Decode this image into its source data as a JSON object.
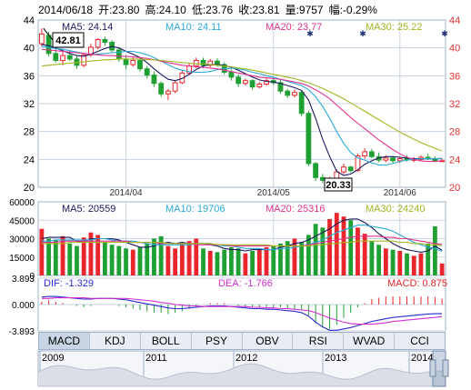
{
  "header": {
    "date": "2014/06/18",
    "open": "开:23.80",
    "high": "高:24.10",
    "low": "低:23.76",
    "close": "收:23.81",
    "volume": "量:9757",
    "change": "幅:-0.29%"
  },
  "colors": {
    "up": "#e8262b",
    "down": "#20a033",
    "ma5": "#1a1a5e",
    "ma10": "#2aa9d9",
    "ma20": "#e0338f",
    "ma30": "#a3b61f",
    "dif": "#2b2bd0",
    "dea": "#d22fd2",
    "grid": "#c8d3e2",
    "axis_left": "#000000",
    "axis_right": "#e03030"
  },
  "price_legend": [
    "MA5: 24.14",
    "MA10: 24.11",
    "MA20: 23.77",
    "MA30: 25.22"
  ],
  "volume_legend": [
    "MA5: 20559",
    "MA10: 19706",
    "MA20: 25316",
    "MA30: 24240"
  ],
  "macd_legend": [
    "DIF: -1.329",
    "DEA: -1.766",
    "MACD: 0.875"
  ],
  "price_callouts": {
    "high": "42.81",
    "low": "20.33"
  },
  "tabs": [
    {
      "label": "MACD",
      "active": true
    },
    {
      "label": "KDJ",
      "active": false
    },
    {
      "label": "BOLL",
      "active": false
    },
    {
      "label": "PSY",
      "active": false
    },
    {
      "label": "OBV",
      "active": false
    },
    {
      "label": "RSI",
      "active": false
    },
    {
      "label": "WVAD",
      "active": false
    },
    {
      "label": "CCI",
      "active": false
    }
  ],
  "timeline_years": [
    "2009",
    "2011",
    "2012",
    "2013",
    "2014"
  ],
  "chart_data": [
    {
      "type": "candlestick",
      "name": "price",
      "ylim": [
        20,
        44
      ],
      "y_ticks": [
        20,
        24,
        28,
        32,
        36,
        40,
        44
      ],
      "x_ticks": [
        "2014/04",
        "2014/05",
        "2014/06"
      ],
      "ohlc": [
        [
          40.6,
          42.8,
          40.2,
          42.0
        ],
        [
          41.8,
          42.3,
          38.8,
          39.2
        ],
        [
          39.2,
          40.0,
          37.9,
          38.2
        ],
        [
          38.2,
          39.5,
          37.5,
          38.9
        ],
        [
          38.9,
          39.6,
          38.1,
          38.4
        ],
        [
          38.4,
          38.9,
          37.0,
          37.5
        ],
        [
          37.5,
          39.3,
          37.2,
          39.0
        ],
        [
          39.0,
          40.6,
          38.7,
          40.1
        ],
        [
          40.1,
          41.4,
          39.8,
          41.2
        ],
        [
          41.2,
          41.6,
          40.3,
          40.8
        ],
        [
          40.8,
          41.1,
          39.3,
          39.7
        ],
        [
          39.7,
          40.1,
          38.0,
          38.4
        ],
        [
          38.4,
          38.9,
          37.0,
          37.6
        ],
        [
          37.6,
          38.7,
          37.3,
          38.2
        ],
        [
          38.2,
          38.5,
          36.6,
          37.0
        ],
        [
          37.0,
          37.4,
          35.6,
          36.1
        ],
        [
          36.1,
          36.6,
          34.4,
          34.9
        ],
        [
          34.9,
          35.2,
          33.0,
          33.4
        ],
        [
          33.4,
          34.1,
          32.5,
          33.8
        ],
        [
          33.8,
          35.3,
          33.5,
          35.0
        ],
        [
          35.0,
          36.8,
          34.8,
          36.4
        ],
        [
          36.4,
          37.8,
          36.1,
          37.4
        ],
        [
          37.4,
          38.6,
          37.1,
          38.2
        ],
        [
          38.2,
          38.6,
          37.1,
          37.5
        ],
        [
          37.5,
          38.4,
          37.2,
          38.1
        ],
        [
          38.1,
          38.5,
          37.3,
          37.6
        ],
        [
          37.6,
          37.9,
          36.2,
          36.5
        ],
        [
          36.5,
          36.9,
          35.3,
          35.8
        ],
        [
          35.8,
          36.2,
          34.4,
          34.9
        ],
        [
          34.9,
          35.6,
          34.6,
          35.3
        ],
        [
          35.3,
          35.5,
          34.0,
          34.4
        ],
        [
          34.4,
          35.1,
          34.2,
          34.8
        ],
        [
          34.8,
          35.6,
          34.6,
          35.3
        ],
        [
          35.3,
          35.8,
          34.7,
          35.0
        ],
        [
          35.0,
          35.4,
          33.4,
          33.8
        ],
        [
          33.8,
          34.1,
          32.8,
          33.2
        ],
        [
          33.2,
          34.0,
          32.9,
          33.6
        ],
        [
          33.6,
          33.9,
          30.2,
          30.6
        ],
        [
          30.6,
          31.0,
          23.0,
          23.4
        ],
        [
          23.4,
          23.6,
          20.9,
          21.4
        ],
        [
          21.4,
          21.9,
          20.6,
          21.0
        ],
        [
          21.0,
          21.5,
          20.33,
          21.1
        ],
        [
          21.1,
          22.6,
          21.0,
          22.2
        ],
        [
          22.2,
          23.4,
          21.9,
          22.9
        ],
        [
          22.9,
          23.1,
          22.1,
          22.4
        ],
        [
          22.4,
          24.8,
          22.2,
          24.5
        ],
        [
          24.5,
          25.6,
          24.1,
          25.1
        ],
        [
          25.1,
          25.5,
          24.2,
          24.4
        ],
        [
          24.4,
          25.0,
          23.6,
          23.9
        ],
        [
          23.9,
          24.6,
          23.6,
          24.2
        ],
        [
          24.2,
          24.5,
          23.5,
          23.8
        ],
        [
          23.8,
          24.4,
          23.5,
          24.1
        ],
        [
          24.1,
          24.6,
          23.7,
          23.9
        ],
        [
          23.9,
          24.3,
          23.6,
          24.0
        ],
        [
          24.0,
          24.6,
          23.7,
          24.3
        ],
        [
          24.3,
          24.8,
          23.9,
          24.1
        ],
        [
          24.1,
          24.4,
          23.6,
          23.8
        ],
        [
          23.8,
          24.1,
          23.76,
          23.81
        ]
      ],
      "ma5": [
        40.5,
        40.3,
        40.0,
        39.6,
        39.2,
        38.9,
        38.8,
        39.1,
        39.5,
        39.9,
        40.2,
        40.0,
        39.5,
        39.1,
        38.6,
        37.9,
        37.0,
        36.2,
        35.5,
        35.3,
        35.6,
        36.2,
        36.9,
        37.4,
        37.6,
        37.6,
        37.5,
        37.2,
        36.8,
        36.3,
        35.8,
        35.4,
        35.2,
        35.1,
        34.9,
        34.6,
        34.3,
        33.9,
        32.5,
        29.9,
        26.9,
        24.4,
        22.3,
        21.7,
        21.9,
        22.5,
        23.3,
        23.8,
        24.2,
        24.4,
        24.4,
        24.3,
        24.2,
        24.1,
        24.1,
        24.1,
        24.1,
        24.14
      ],
      "ma10": [
        40.2,
        40.1,
        39.9,
        39.8,
        39.6,
        39.4,
        39.2,
        39.1,
        39.1,
        39.2,
        39.3,
        39.4,
        39.5,
        39.5,
        39.3,
        39.0,
        38.6,
        38.1,
        37.6,
        37.1,
        36.8,
        36.6,
        36.5,
        36.5,
        36.6,
        36.9,
        37.0,
        37.1,
        37.0,
        36.8,
        36.5,
        36.3,
        36.0,
        35.8,
        35.5,
        35.2,
        34.9,
        34.6,
        34.0,
        33.0,
        31.6,
        29.9,
        28.0,
        26.3,
        25.0,
        24.2,
        23.9,
        23.5,
        23.2,
        23.2,
        23.4,
        23.7,
        23.9,
        24.0,
        24.1,
        24.1,
        24.1,
        24.11
      ],
      "ma20": [
        39.8,
        39.7,
        39.6,
        39.5,
        39.4,
        39.3,
        39.2,
        39.1,
        39.0,
        38.9,
        38.9,
        38.8,
        38.8,
        38.7,
        38.6,
        38.5,
        38.3,
        38.1,
        37.9,
        37.7,
        37.5,
        37.4,
        37.3,
        37.2,
        37.1,
        37.0,
        36.8,
        36.6,
        36.4,
        36.2,
        36.0,
        35.8,
        35.7,
        35.6,
        35.5,
        35.3,
        35.1,
        34.9,
        34.5,
        34.0,
        33.4,
        32.7,
        31.8,
        30.9,
        30.0,
        29.2,
        28.4,
        27.6,
        26.8,
        26.1,
        25.4,
        24.8,
        24.3,
        24.0,
        23.8,
        23.7,
        23.7,
        23.77
      ],
      "ma30": [
        37.4,
        37.5,
        37.6,
        37.7,
        37.8,
        37.9,
        38.0,
        38.1,
        38.2,
        38.3,
        38.3,
        38.4,
        38.4,
        38.4,
        38.4,
        38.3,
        38.3,
        38.2,
        38.1,
        38.0,
        37.9,
        37.8,
        37.7,
        37.7,
        37.6,
        37.5,
        37.4,
        37.3,
        37.1,
        37.0,
        36.8,
        36.6,
        36.4,
        36.2,
        36.0,
        35.8,
        35.6,
        35.3,
        35.0,
        34.6,
        34.2,
        33.7,
        33.2,
        32.7,
        32.1,
        31.5,
        30.9,
        30.3,
        29.7,
        29.1,
        28.5,
        27.9,
        27.4,
        26.9,
        26.4,
        26.0,
        25.6,
        25.22
      ]
    },
    {
      "type": "bar",
      "name": "volume",
      "ylim": [
        0,
        60000
      ],
      "y_ticks": [
        0,
        15000,
        30000,
        45000,
        60000
      ],
      "values": [
        38000,
        30000,
        29000,
        32000,
        26000,
        24000,
        31000,
        35000,
        33000,
        27000,
        25000,
        24000,
        22000,
        21000,
        23000,
        26000,
        30000,
        32000,
        24000,
        22000,
        26000,
        28000,
        30000,
        22000,
        20000,
        19000,
        21000,
        23000,
        22000,
        18000,
        20000,
        21000,
        23000,
        24000,
        26000,
        28000,
        30000,
        27000,
        33000,
        42000,
        39000,
        46000,
        51000,
        48000,
        45000,
        39000,
        34000,
        28000,
        25000,
        22000,
        21000,
        20000,
        18000,
        16000,
        18000,
        26000,
        40000,
        9757
      ],
      "ma5": [
        30000,
        31000,
        31000,
        31000,
        31000,
        28000,
        27000,
        30000,
        30000,
        30000,
        30000,
        29000,
        27000,
        25000,
        23000,
        23000,
        24000,
        26000,
        27000,
        26000,
        27000,
        26000,
        26000,
        26000,
        25000,
        24000,
        22000,
        21000,
        21000,
        20000,
        21000,
        21000,
        21000,
        21000,
        23000,
        24000,
        26000,
        27000,
        29000,
        32000,
        35000,
        38000,
        42000,
        45000,
        46000,
        46000,
        43000,
        39000,
        34000,
        30000,
        26000,
        23000,
        21000,
        20000,
        19000,
        20000,
        24000,
        20559
      ],
      "ma10": [
        28000,
        28000,
        29000,
        29000,
        29000,
        29000,
        29000,
        29000,
        30000,
        30000,
        29000,
        28000,
        28000,
        28000,
        27000,
        26000,
        25000,
        25000,
        25000,
        25000,
        25000,
        25000,
        26000,
        26000,
        26000,
        25000,
        24000,
        24000,
        23000,
        22000,
        22000,
        22000,
        21000,
        21000,
        22000,
        22000,
        23000,
        24000,
        25000,
        27000,
        29000,
        32000,
        35000,
        37000,
        39000,
        41000,
        41000,
        40000,
        39000,
        38000,
        36000,
        33000,
        30000,
        27000,
        25000,
        23000,
        22000,
        19706
      ],
      "ma20": [
        27000,
        27000,
        27000,
        28000,
        28000,
        28000,
        28000,
        28000,
        28000,
        28000,
        28000,
        28000,
        28000,
        27000,
        27000,
        27000,
        27000,
        26000,
        26000,
        26000,
        26000,
        26000,
        25000,
        25000,
        25000,
        25000,
        25000,
        24000,
        24000,
        24000,
        24000,
        24000,
        24000,
        24000,
        24000,
        24000,
        24000,
        24000,
        25000,
        26000,
        27000,
        28000,
        29000,
        30000,
        31000,
        32000,
        32000,
        32000,
        32000,
        31000,
        31000,
        30000,
        30000,
        29000,
        28000,
        27000,
        26000,
        25316
      ],
      "ma30": [
        26000,
        26000,
        26000,
        26000,
        27000,
        27000,
        27000,
        27000,
        27000,
        27000,
        27000,
        27000,
        27000,
        27000,
        27000,
        27000,
        27000,
        27000,
        26000,
        26000,
        26000,
        26000,
        26000,
        26000,
        26000,
        25000,
        25000,
        25000,
        25000,
        25000,
        25000,
        25000,
        25000,
        24000,
        24000,
        24000,
        24000,
        24000,
        24000,
        25000,
        25000,
        26000,
        26000,
        27000,
        27000,
        28000,
        28000,
        28000,
        28000,
        28000,
        28000,
        27000,
        27000,
        26000,
        26000,
        25000,
        25000,
        24240
      ]
    },
    {
      "type": "line",
      "name": "MACD",
      "ylim": [
        -3.893,
        3.893
      ],
      "y_ticks": [
        -3.893,
        0.0,
        3.893
      ],
      "dif": [
        1.1,
        1.2,
        1.2,
        1.1,
        1.0,
        0.9,
        0.8,
        0.8,
        0.9,
        0.9,
        0.9,
        0.8,
        0.7,
        0.5,
        0.3,
        0.1,
        -0.1,
        -0.3,
        -0.5,
        -0.6,
        -0.6,
        -0.5,
        -0.4,
        -0.3,
        -0.2,
        -0.2,
        -0.2,
        -0.3,
        -0.4,
        -0.5,
        -0.6,
        -0.6,
        -0.7,
        -0.7,
        -0.8,
        -0.9,
        -1.0,
        -1.2,
        -1.7,
        -2.6,
        -3.3,
        -3.8,
        -3.8,
        -3.6,
        -3.4,
        -3.1,
        -2.8,
        -2.5,
        -2.3,
        -2.1,
        -1.9,
        -1.8,
        -1.7,
        -1.6,
        -1.5,
        -1.4,
        -1.35,
        -1.329
      ],
      "dea": [
        0.9,
        0.9,
        1.0,
        1.0,
        1.0,
        1.0,
        1.0,
        0.9,
        0.9,
        0.9,
        0.9,
        0.9,
        0.9,
        0.8,
        0.7,
        0.6,
        0.5,
        0.3,
        0.2,
        0.0,
        -0.1,
        -0.2,
        -0.2,
        -0.3,
        -0.3,
        -0.3,
        -0.3,
        -0.3,
        -0.3,
        -0.3,
        -0.4,
        -0.4,
        -0.5,
        -0.5,
        -0.6,
        -0.6,
        -0.7,
        -0.8,
        -0.9,
        -1.2,
        -1.6,
        -2.0,
        -2.3,
        -2.6,
        -2.8,
        -2.9,
        -2.9,
        -2.9,
        -2.8,
        -2.7,
        -2.5,
        -2.4,
        -2.3,
        -2.2,
        -2.1,
        -2.0,
        -1.9,
        -1.766
      ],
      "macd": [
        0.4,
        0.6,
        0.4,
        0.2,
        0.0,
        -0.2,
        -0.4,
        -0.2,
        0.0,
        0.0,
        0.0,
        -0.2,
        -0.4,
        -0.6,
        -0.8,
        -1.0,
        -1.2,
        -1.2,
        -1.4,
        -1.2,
        -1.0,
        -0.6,
        -0.4,
        0.0,
        0.2,
        0.2,
        0.2,
        0.0,
        -0.2,
        -0.4,
        -0.4,
        -0.4,
        -0.4,
        -0.4,
        -0.4,
        -0.6,
        -0.6,
        -0.8,
        -1.6,
        -2.8,
        -3.4,
        -3.6,
        -3.0,
        -2.0,
        -1.2,
        -0.4,
        0.2,
        0.8,
        1.0,
        1.2,
        1.2,
        1.2,
        1.2,
        1.2,
        1.2,
        1.2,
        1.1,
        0.875
      ]
    }
  ]
}
